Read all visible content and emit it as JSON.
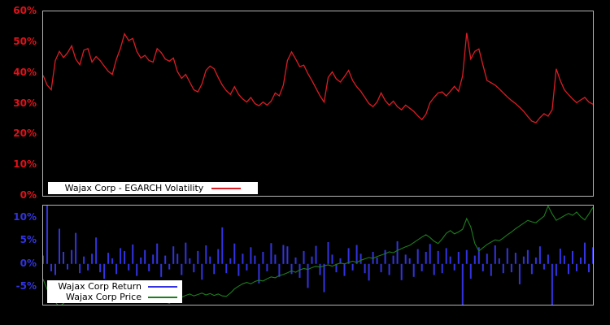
{
  "figure": {
    "background": "#000000",
    "axis_border_color": "#b4b4b4",
    "legend_background": "#ffffff",
    "legend_text_color": "#000000"
  },
  "chart_data": [
    {
      "type": "line",
      "title": "",
      "xlabel": "",
      "ylabel": "",
      "grid": false,
      "legend_position": "bottom-left",
      "ylim": [
        0,
        60
      ],
      "tick_color": "#e01219",
      "y_ticks": [
        {
          "value": 60,
          "label": "60%"
        },
        {
          "value": 50,
          "label": "50%"
        },
        {
          "value": 40,
          "label": "40%"
        },
        {
          "value": 30,
          "label": "30%"
        },
        {
          "value": 20,
          "label": "20%"
        },
        {
          "value": 10,
          "label": "10%"
        },
        {
          "value": 0,
          "label": "0%"
        }
      ],
      "series": [
        {
          "name": "Wajax Corp - EGARCH Volatility",
          "type": "line",
          "color": "#dc1c24",
          "values": [
            39.2,
            36.0,
            34.5,
            44.0,
            47.0,
            45.0,
            46.5,
            48.8,
            44.5,
            42.6,
            47.4,
            47.9,
            43.5,
            45.3,
            44.0,
            42.2,
            40.5,
            39.5,
            44.4,
            48.0,
            52.7,
            50.5,
            51.2,
            47.0,
            44.8,
            45.7,
            44.0,
            43.5,
            47.9,
            46.6,
            44.5,
            43.8,
            44.8,
            40.4,
            38.2,
            39.5,
            37.0,
            34.5,
            33.8,
            36.4,
            40.8,
            42.2,
            41.3,
            38.5,
            36.0,
            34.2,
            33.0,
            35.5,
            33.0,
            31.5,
            30.5,
            32.0,
            30.0,
            29.3,
            30.5,
            29.5,
            30.8,
            33.5,
            32.5,
            36.0,
            44.0,
            46.8,
            44.5,
            42.0,
            42.5,
            39.8,
            37.5,
            35.0,
            32.5,
            30.5,
            38.5,
            40.3,
            38.0,
            37.0,
            38.8,
            40.8,
            37.5,
            35.5,
            34.0,
            32.0,
            30.0,
            29.0,
            30.5,
            33.5,
            31.0,
            29.5,
            30.8,
            29.0,
            28.0,
            29.5,
            28.5,
            27.5,
            26.0,
            24.8,
            26.5,
            30.3,
            32.0,
            33.5,
            33.8,
            32.5,
            34.0,
            35.6,
            34.0,
            39.0,
            53.0,
            44.5,
            47.0,
            47.8,
            42.5,
            37.5,
            36.8,
            36.0,
            34.8,
            33.5,
            32.2,
            31.0,
            30.0,
            28.8,
            27.5,
            25.8,
            24.3,
            23.8,
            25.4,
            26.7,
            25.9,
            28.0,
            41.3,
            37.5,
            34.5,
            32.9,
            31.5,
            30.3,
            31.2,
            32.0,
            30.5,
            29.8
          ]
        }
      ]
    },
    {
      "type": "bar",
      "title": "",
      "xlabel": "",
      "ylabel": "",
      "grid": false,
      "legend_position": "bottom-left",
      "ylim": [
        -8.8,
        12.6
      ],
      "tick_color": "#3333e0",
      "y_ticks": [
        {
          "value": 10,
          "label": "10%"
        },
        {
          "value": 5,
          "label": "5%"
        },
        {
          "value": 0,
          "label": "0%"
        },
        {
          "value": -5,
          "label": "-5%"
        }
      ],
      "series": [
        {
          "name": "Wajax Corp Return",
          "type": "bar",
          "color": "#3333e0",
          "values": [
            1.8,
            12.6,
            -1.6,
            -2.4,
            7.6,
            2.6,
            -1.2,
            3.0,
            6.7,
            -2.0,
            1.6,
            -1.4,
            2.2,
            5.7,
            -1.8,
            -3.2,
            2.4,
            1.2,
            -2.2,
            3.4,
            2.8,
            -1.4,
            4.2,
            -2.6,
            1.4,
            3.0,
            -1.6,
            2.0,
            4.4,
            -2.8,
            1.8,
            -1.2,
            3.8,
            2.2,
            -2.4,
            4.6,
            1.2,
            -1.8,
            2.8,
            -3.4,
            4.0,
            1.6,
            -2.2,
            3.2,
            7.9,
            -2.0,
            1.2,
            4.4,
            -2.6,
            2.2,
            -1.4,
            3.6,
            1.8,
            -4.2,
            2.6,
            -1.6,
            4.5,
            2.0,
            -2.8,
            4.1,
            3.8,
            -2.2,
            1.4,
            -3.0,
            2.8,
            -5.2,
            1.6,
            3.9,
            -2.4,
            -6.1,
            4.7,
            2.0,
            -1.8,
            1.2,
            -2.6,
            3.4,
            -1.4,
            4.1,
            2.2,
            -2.0,
            -3.6,
            2.6,
            1.4,
            -1.8,
            3.0,
            -2.4,
            1.8,
            4.9,
            -3.5,
            2.0,
            1.2,
            -2.8,
            3.2,
            -1.6,
            2.6,
            4.3,
            -2.4,
            2.8,
            -2.0,
            3.4,
            1.6,
            -1.4,
            2.6,
            -8.8,
            3.0,
            -3.2,
            1.8,
            3.6,
            -1.6,
            2.2,
            -2.6,
            4.0,
            1.2,
            -2.0,
            3.4,
            -1.8,
            2.4,
            -4.4,
            1.6,
            3.0,
            -2.2,
            1.4,
            3.8,
            -1.2,
            2.0,
            -8.8,
            -2.6,
            3.3,
            1.8,
            -2.2,
            2.8,
            -1.6,
            1.4,
            4.6,
            -1.8,
            3.6
          ]
        },
        {
          "name": "Wajax Corp Price",
          "type": "line",
          "color": "#1e7d1e",
          "values": [
            -3.3,
            -5.5,
            -7.2,
            -8.2,
            -9.3,
            -8.5,
            -7.8,
            -8.2,
            -7.5,
            -7.0,
            -7.4,
            -6.8,
            -7.2,
            -7.6,
            -7.0,
            -7.8,
            -8.2,
            -7.6,
            -7.2,
            -7.8,
            -8.3,
            -7.8,
            -8.0,
            -7.4,
            -7.0,
            -7.3,
            -7.8,
            -8.0,
            -7.5,
            -7.8,
            -8.2,
            -8.5,
            -8.0,
            -7.6,
            -7.2,
            -6.8,
            -6.5,
            -6.9,
            -6.6,
            -6.3,
            -6.7,
            -6.4,
            -6.8,
            -6.5,
            -6.9,
            -7.0,
            -6.3,
            -5.4,
            -4.8,
            -4.3,
            -4.0,
            -4.3,
            -3.8,
            -3.5,
            -3.7,
            -3.2,
            -2.8,
            -3.0,
            -2.5,
            -2.3,
            -1.9,
            -1.5,
            -1.8,
            -1.3,
            -1.0,
            -1.2,
            -0.8,
            -0.5,
            -0.7,
            -0.4,
            -0.2,
            -0.5,
            -0.1,
            0.2,
            0.0,
            0.3,
            0.6,
            0.3,
            0.8,
            1.1,
            1.4,
            1.2,
            1.6,
            1.9,
            2.2,
            2.6,
            2.4,
            2.9,
            3.3,
            3.7,
            4.0,
            4.6,
            5.2,
            5.8,
            6.3,
            5.7,
            4.9,
            4.4,
            5.4,
            6.6,
            7.2,
            6.5,
            6.9,
            7.5,
            9.8,
            8.0,
            4.4,
            2.8,
            3.5,
            4.2,
            4.7,
            5.2,
            5.0,
            5.6,
            6.3,
            6.9,
            7.6,
            8.2,
            8.8,
            9.4,
            9.1,
            8.9,
            9.6,
            10.3,
            12.5,
            10.8,
            9.4,
            9.9,
            10.4,
            10.9,
            10.5,
            11.2,
            10.2,
            9.5,
            10.8,
            12.2
          ]
        }
      ]
    }
  ]
}
